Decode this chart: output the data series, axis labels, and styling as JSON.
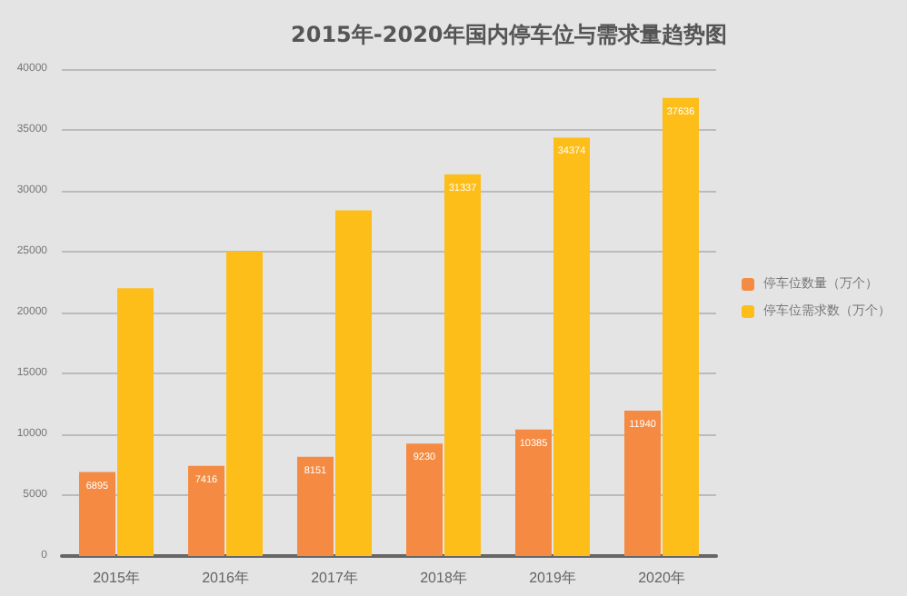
{
  "chart_data": {
    "type": "bar",
    "title": "2015年-2020年国内停车位与需求量趋势图",
    "categories": [
      "2015年",
      "2016年",
      "2017年",
      "2018年",
      "2019年",
      "2020年"
    ],
    "series": [
      {
        "name": "停车位数量（万个）",
        "color": "#f58a42",
        "values": [
          6895,
          7416,
          8151,
          9230,
          10385,
          11940
        ],
        "value_labels": [
          "6895",
          "7416",
          "8151",
          "9230",
          "10385",
          "11940"
        ]
      },
      {
        "name": "停车位需求数（万个）",
        "color": "#fdbe1a",
        "values": [
          22000,
          25000,
          28400,
          31337,
          34374,
          37636
        ],
        "value_labels": [
          null,
          null,
          null,
          "31337",
          "34374",
          "37636"
        ]
      }
    ],
    "ylim": [
      0,
      40000
    ],
    "yticks": [
      0,
      5000,
      10000,
      15000,
      20000,
      25000,
      30000,
      35000,
      40000
    ],
    "grid": "y",
    "legend": "right"
  }
}
